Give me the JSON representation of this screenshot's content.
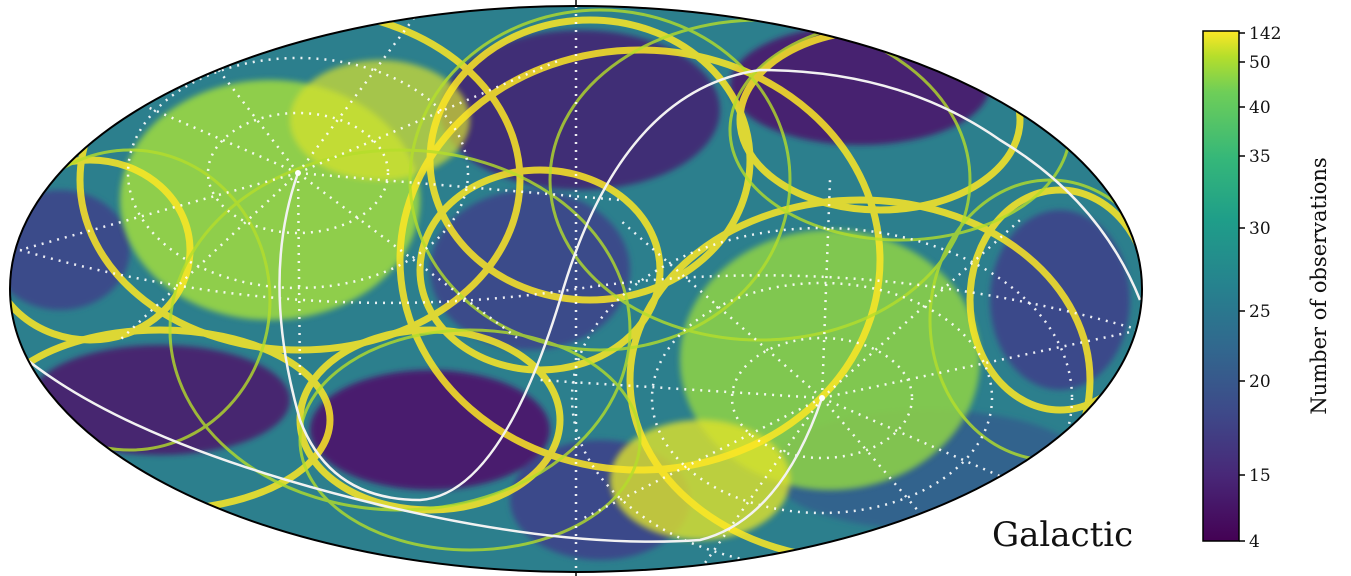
{
  "chart_data": {
    "type": "heatmap",
    "projection": "mollweide",
    "frame_label": "Galactic",
    "colormap": "viridis",
    "colorbar": {
      "label": "Number of observations",
      "ticks": [
        "142",
        "50",
        "40",
        "35",
        "30",
        "25",
        "20",
        "15",
        "4"
      ],
      "min": 4,
      "max": 142
    },
    "grid": true,
    "colors": {
      "low": "#440154",
      "mid_low": "#3b528b",
      "mid": "#21908d",
      "mid_high": "#5ec962",
      "high": "#fde725",
      "grid_lines": "#ffffff"
    }
  }
}
